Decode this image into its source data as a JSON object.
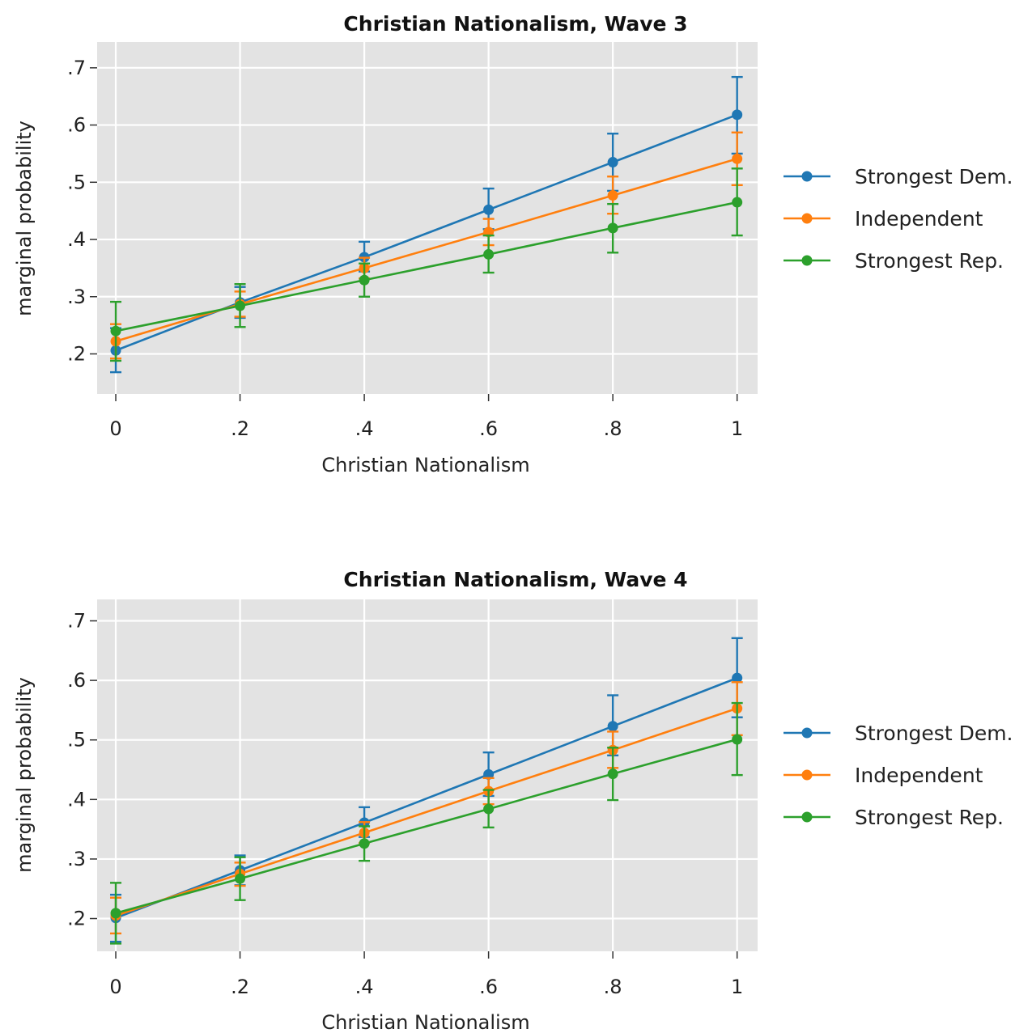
{
  "chart_data": [
    {
      "type": "line",
      "title": "Christian Nationalism, Wave 3",
      "xlabel": "Christian Nationalism",
      "ylabel": "marginal probability",
      "x": [
        0,
        0.2,
        0.4,
        0.6,
        0.8,
        1
      ],
      "x_tick_labels": [
        "0",
        ".2",
        ".4",
        ".6",
        ".8",
        "1"
      ],
      "y_ticks": [
        0.2,
        0.3,
        0.4,
        0.5,
        0.6,
        0.7
      ],
      "y_tick_labels": [
        ".2",
        ".3",
        ".4",
        ".5",
        ".6",
        ".7"
      ],
      "xlim": [
        -0.03,
        1.033
      ],
      "ylim": [
        0.13,
        0.745
      ],
      "grid": true,
      "legend_position": "right",
      "series": [
        {
          "name": "Strongest Dem.",
          "color": "#1f77b4",
          "values": [
            0.206,
            0.29,
            0.369,
            0.452,
            0.535,
            0.618
          ],
          "lower": [
            0.168,
            0.263,
            0.344,
            0.418,
            0.485,
            0.55
          ],
          "upper": [
            0.245,
            0.317,
            0.396,
            0.489,
            0.585,
            0.684
          ]
        },
        {
          "name": "Independent",
          "color": "#ff7f0e",
          "values": [
            0.222,
            0.287,
            0.35,
            0.413,
            0.477,
            0.541
          ],
          "lower": [
            0.192,
            0.265,
            0.332,
            0.39,
            0.445,
            0.495
          ],
          "upper": [
            0.252,
            0.309,
            0.368,
            0.436,
            0.51,
            0.587
          ]
        },
        {
          "name": "Strongest Rep.",
          "color": "#2ca02c",
          "values": [
            0.24,
            0.284,
            0.329,
            0.374,
            0.42,
            0.465
          ],
          "lower": [
            0.188,
            0.247,
            0.3,
            0.342,
            0.377,
            0.407
          ],
          "upper": [
            0.291,
            0.322,
            0.358,
            0.407,
            0.462,
            0.524
          ]
        }
      ]
    },
    {
      "type": "line",
      "title": "Christian Nationalism, Wave 4",
      "xlabel": "Christian Nationalism",
      "ylabel": "marginal probability",
      "x": [
        0,
        0.2,
        0.4,
        0.6,
        0.8,
        1
      ],
      "x_tick_labels": [
        "0",
        ".2",
        ".4",
        ".6",
        ".8",
        "1"
      ],
      "y_ticks": [
        0.2,
        0.3,
        0.4,
        0.5,
        0.6,
        0.7
      ],
      "y_tick_labels": [
        ".2",
        ".3",
        ".4",
        ".5",
        ".6",
        ".7"
      ],
      "xlim": [
        -0.03,
        1.033
      ],
      "ylim": [
        0.145,
        0.736
      ],
      "grid": true,
      "legend_position": "right",
      "series": [
        {
          "name": "Strongest Dem.",
          "color": "#1f77b4",
          "values": [
            0.201,
            0.281,
            0.361,
            0.442,
            0.523,
            0.604
          ],
          "lower": [
            0.161,
            0.256,
            0.337,
            0.406,
            0.474,
            0.538
          ],
          "upper": [
            0.24,
            0.306,
            0.387,
            0.479,
            0.575,
            0.671
          ]
        },
        {
          "name": "Independent",
          "color": "#ff7f0e",
          "values": [
            0.205,
            0.275,
            0.344,
            0.414,
            0.483,
            0.553
          ],
          "lower": [
            0.175,
            0.255,
            0.327,
            0.392,
            0.453,
            0.508
          ],
          "upper": [
            0.235,
            0.294,
            0.362,
            0.436,
            0.514,
            0.597
          ]
        },
        {
          "name": "Strongest Rep.",
          "color": "#2ca02c",
          "values": [
            0.209,
            0.267,
            0.326,
            0.384,
            0.443,
            0.501
          ],
          "lower": [
            0.158,
            0.231,
            0.297,
            0.353,
            0.399,
            0.441
          ],
          "upper": [
            0.26,
            0.303,
            0.355,
            0.416,
            0.487,
            0.562
          ]
        }
      ]
    }
  ]
}
